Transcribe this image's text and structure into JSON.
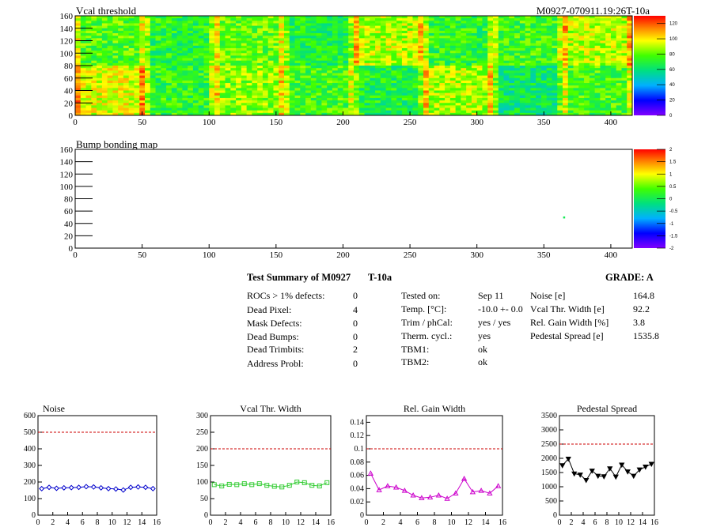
{
  "vcal_map": {
    "title": "Vcal threshold",
    "id_label": "M0927-070911.19:26T-10a",
    "xticks": [
      "0",
      "50",
      "100",
      "150",
      "200",
      "250",
      "300",
      "350",
      "400"
    ],
    "yticks": [
      "0",
      "20",
      "40",
      "60",
      "80",
      "100",
      "120",
      "140",
      "160"
    ],
    "zticks": [
      "0",
      "20",
      "40",
      "60",
      "80",
      "100",
      "120"
    ]
  },
  "bump_map": {
    "title": "Bump bonding map",
    "xticks": [
      "0",
      "50",
      "100",
      "150",
      "200",
      "250",
      "300",
      "350",
      "400"
    ],
    "yticks": [
      "0",
      "20",
      "40",
      "60",
      "80",
      "100",
      "120",
      "140",
      "160"
    ],
    "zticks": [
      "-2",
      "-1.5",
      "-1",
      "-0.5",
      "0",
      "0.5",
      "1",
      "1.5",
      "2"
    ]
  },
  "summary": {
    "title": "Test Summary of M0927",
    "temp_tag": "T-10a",
    "grade_label": "GRADE:  A",
    "defects": [
      {
        "label": "ROCs > 1% defects:",
        "value": "0"
      },
      {
        "label": "Dead Pixel:",
        "value": "4"
      },
      {
        "label": "Mask Defects:",
        "value": "0"
      },
      {
        "label": "Dead Bumps:",
        "value": "0"
      },
      {
        "label": "Dead Trimbits:",
        "value": "2"
      },
      {
        "label": "Address Probl:",
        "value": "0"
      }
    ],
    "conditions": [
      {
        "label": "Tested on:",
        "value": "Sep 11"
      },
      {
        "label": "Temp. [°C]:",
        "value": "-10.0 +- 0.0"
      },
      {
        "label": "Trim / phCal:",
        "value": "yes / yes"
      },
      {
        "label": "Therm. cycl.:",
        "value": "yes"
      },
      {
        "label": "TBM1:",
        "value": "ok"
      },
      {
        "label": "TBM2:",
        "value": "ok"
      }
    ],
    "results": [
      {
        "label": "Noise [e]",
        "value": "164.8"
      },
      {
        "label": "Vcal Thr. Width [e]",
        "value": "92.2"
      },
      {
        "label": "Rel. Gain Width [%]",
        "value": "3.8"
      },
      {
        "label": "Pedestal Spread [e]",
        "value": "1535.8"
      }
    ]
  },
  "chart_data": [
    {
      "type": "heatmap",
      "title": "Vcal threshold",
      "xlim": [
        0,
        416
      ],
      "ylim": [
        0,
        160
      ],
      "zlim": [
        0,
        130
      ],
      "grid": "8 x 2 readout chips",
      "chip_mean_values": [
        [
          78,
          70,
          80,
          68,
          90,
          72,
          75,
          90
        ],
        [
          95,
          72,
          85,
          75,
          68,
          88,
          62,
          75
        ]
      ]
    },
    {
      "type": "heatmap",
      "title": "Bump bonding map",
      "xlim": [
        0,
        416
      ],
      "ylim": [
        0,
        160
      ],
      "zlim": [
        -2,
        2
      ],
      "points": [
        {
          "x": 365,
          "y": 50,
          "z": 0
        }
      ]
    },
    {
      "type": "line",
      "title": "Noise",
      "x": [
        0,
        1,
        2,
        3,
        4,
        5,
        6,
        7,
        8,
        9,
        10,
        11,
        12,
        13,
        14,
        15
      ],
      "values": [
        160,
        168,
        162,
        165,
        166,
        168,
        172,
        170,
        165,
        160,
        158,
        152,
        168,
        170,
        168,
        160
      ],
      "xlim": [
        0,
        16
      ],
      "ylim": [
        0,
        600
      ],
      "threshold": 500,
      "xticks": [
        "0",
        "2",
        "4",
        "6",
        "8",
        "10",
        "12",
        "14",
        "16"
      ],
      "yticks": [
        "0",
        "100",
        "200",
        "300",
        "400",
        "500",
        "600"
      ],
      "color": "#0000cc",
      "marker": "diamond"
    },
    {
      "type": "line",
      "title": "Vcal Thr. Width",
      "x": [
        0,
        1,
        2,
        3,
        4,
        5,
        6,
        7,
        8,
        9,
        10,
        11,
        12,
        13,
        14,
        15
      ],
      "values": [
        92,
        88,
        93,
        92,
        95,
        92,
        95,
        90,
        87,
        85,
        90,
        100,
        98,
        90,
        88,
        98
      ],
      "xlim": [
        0,
        16
      ],
      "ylim": [
        0,
        300
      ],
      "threshold": 200,
      "xticks": [
        "0",
        "2",
        "4",
        "6",
        "8",
        "10",
        "12",
        "14",
        "16"
      ],
      "yticks": [
        "0",
        "50",
        "100",
        "150",
        "200",
        "250",
        "300"
      ],
      "color": "#33cc33",
      "marker": "square"
    },
    {
      "type": "line",
      "title": "Rel. Gain Width",
      "x": [
        0,
        1,
        2,
        3,
        4,
        5,
        6,
        7,
        8,
        9,
        10,
        11,
        12,
        13,
        14,
        15
      ],
      "values": [
        0.063,
        0.038,
        0.044,
        0.042,
        0.037,
        0.03,
        0.026,
        0.027,
        0.03,
        0.025,
        0.033,
        0.055,
        0.035,
        0.037,
        0.033,
        0.044
      ],
      "xlim": [
        0,
        16
      ],
      "ylim": [
        0,
        0.15
      ],
      "threshold": 0.1,
      "xticks": [
        "0",
        "2",
        "4",
        "6",
        "8",
        "10",
        "12",
        "14",
        "16"
      ],
      "yticks": [
        "0",
        "0.02",
        "0.04",
        "0.06",
        "0.08",
        "0.1",
        "0.12",
        "0.14"
      ],
      "color": "#cc00cc",
      "marker": "triangle"
    },
    {
      "type": "line",
      "title": "Pedestal Spread",
      "x": [
        0,
        1,
        2,
        3,
        4,
        5,
        6,
        7,
        8,
        9,
        10,
        11,
        12,
        13,
        14,
        15
      ],
      "values": [
        1750,
        1980,
        1460,
        1420,
        1230,
        1560,
        1380,
        1360,
        1640,
        1350,
        1770,
        1530,
        1380,
        1600,
        1700,
        1800
      ],
      "xlim": [
        0,
        16
      ],
      "ylim": [
        0,
        3500
      ],
      "threshold": 2500,
      "xticks": [
        "0",
        "2",
        "4",
        "6",
        "8",
        "10",
        "12",
        "14",
        "16"
      ],
      "yticks": [
        "0",
        "500",
        "1000",
        "1500",
        "2000",
        "2500",
        "3000",
        "3500"
      ],
      "color": "#000000",
      "marker": "triangle-down"
    }
  ]
}
